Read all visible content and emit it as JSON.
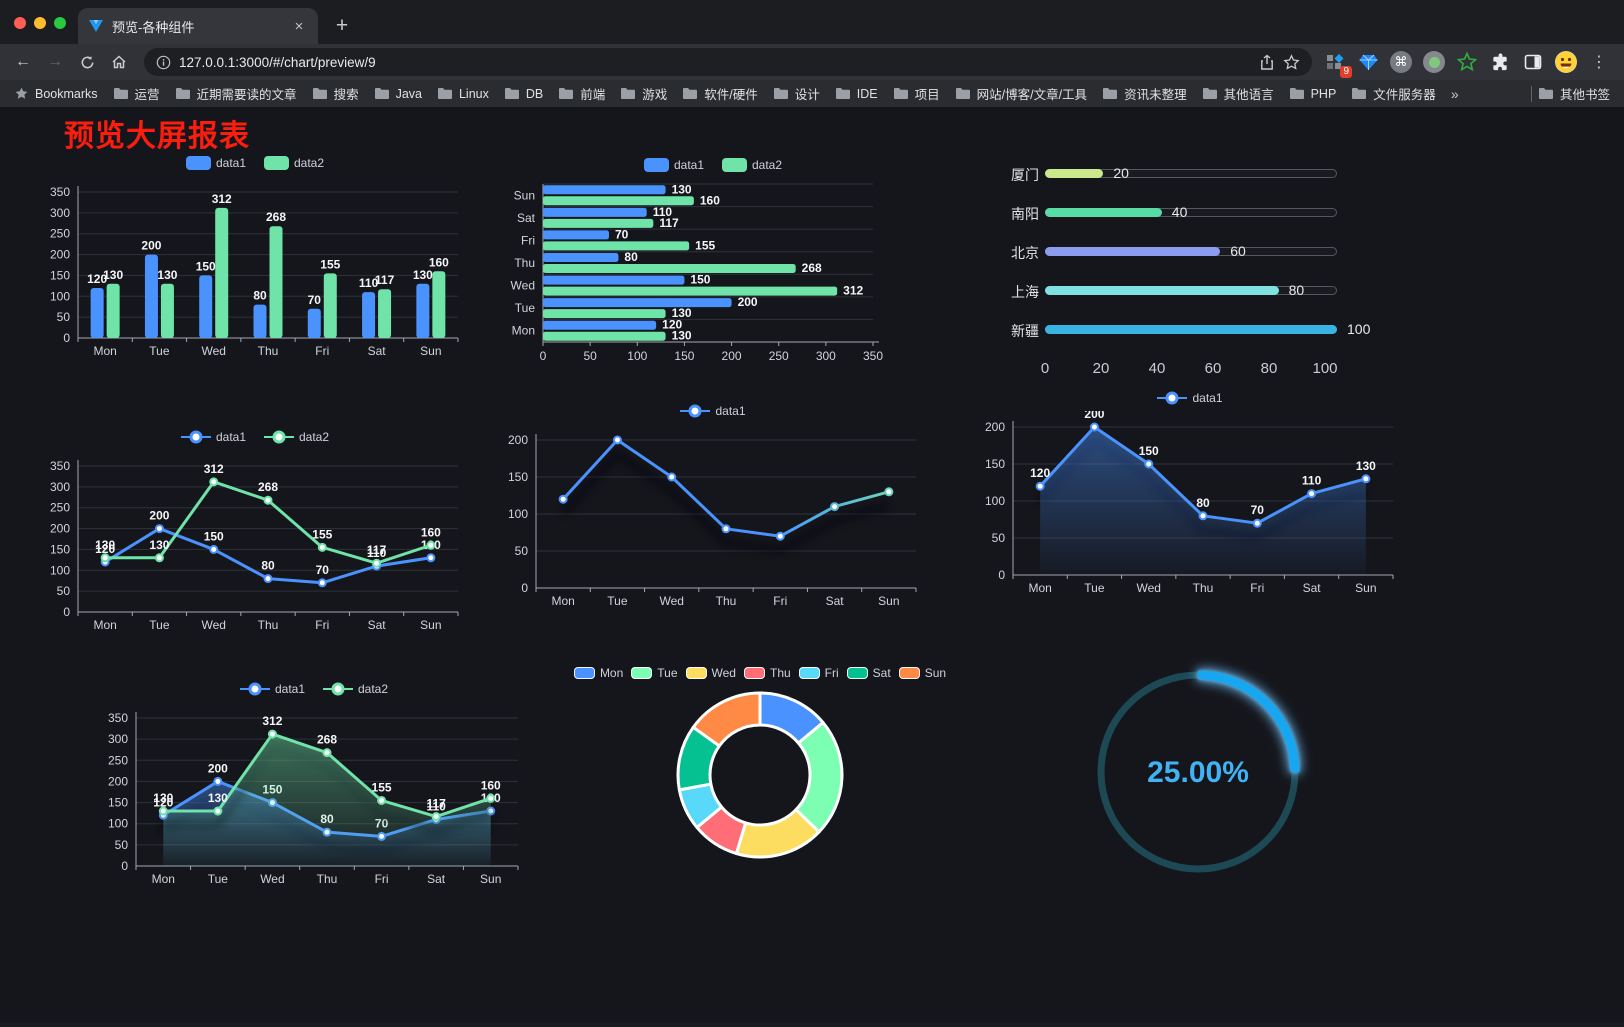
{
  "browser": {
    "tab_title": "预览-各种组件",
    "tab_close": "×",
    "new_tab": "+",
    "url": "127.0.0.1:3000/#/chart/preview/9",
    "ext_badge": "9",
    "menu_icon": "⋮",
    "command_icon": "⌘",
    "bookmarks_label": "Bookmarks",
    "bookmarks": [
      "运营",
      "近期需要读的文章",
      "搜索",
      "Java",
      "Linux",
      "DB",
      "前端",
      "游戏",
      "软件/硬件",
      "设计",
      "IDE",
      "项目",
      "网站/博客/文章/工具",
      "资讯未整理",
      "其他语言",
      "PHP",
      "文件服务器"
    ],
    "overflow": "»",
    "other_bookmarks": "其他书签"
  },
  "page": {
    "title": "预览大屏报表",
    "title_color": "#fb1d0e",
    "background": "#15161c"
  },
  "chart_data": [
    {
      "id": "grouped-bar",
      "type": "bar",
      "categories": [
        "Mon",
        "Tue",
        "Wed",
        "Thu",
        "Fri",
        "Sat",
        "Sun"
      ],
      "series": [
        {
          "name": "data1",
          "color": "#4a93ff",
          "values": [
            120,
            200,
            150,
            80,
            70,
            110,
            130
          ]
        },
        {
          "name": "data2",
          "color": "#6fe3a8",
          "values": [
            130,
            130,
            312,
            268,
            155,
            117,
            160
          ]
        }
      ],
      "ylim": [
        0,
        350
      ],
      "ytick_step": 50,
      "legend": true,
      "value_labels": true
    },
    {
      "id": "grouped-hbar",
      "type": "hbar",
      "categories": [
        "Mon",
        "Tue",
        "Wed",
        "Thu",
        "Fri",
        "Sat",
        "Sun"
      ],
      "series": [
        {
          "name": "data1",
          "color": "#4a93ff",
          "values": [
            120,
            200,
            150,
            80,
            70,
            110,
            130
          ]
        },
        {
          "name": "data2",
          "color": "#6fe3a8",
          "values": [
            130,
            130,
            312,
            268,
            155,
            117,
            160
          ]
        }
      ],
      "xlim": [
        0,
        350
      ],
      "xtick_step": 50,
      "legend": true,
      "value_labels": true
    },
    {
      "id": "city-progress",
      "type": "progress",
      "max": 100,
      "xticks": [
        0,
        20,
        40,
        60,
        80,
        100
      ],
      "items": [
        {
          "label": "厦门",
          "value": 20,
          "color": "#cbe98c"
        },
        {
          "label": "南阳",
          "value": 40,
          "color": "#57dca6"
        },
        {
          "label": "北京",
          "value": 60,
          "color": "#8e9cf0"
        },
        {
          "label": "上海",
          "value": 80,
          "color": "#80e2e0"
        },
        {
          "label": "新疆",
          "value": 100,
          "color": "#38b3e2"
        }
      ]
    },
    {
      "id": "two-line",
      "type": "line",
      "categories": [
        "Mon",
        "Tue",
        "Wed",
        "Thu",
        "Fri",
        "Sat",
        "Sun"
      ],
      "series": [
        {
          "name": "data1",
          "color": "#4a93ff",
          "values": [
            120,
            200,
            150,
            80,
            70,
            110,
            130
          ]
        },
        {
          "name": "data2",
          "color": "#6fe3a8",
          "values": [
            130,
            130,
            312,
            268,
            155,
            117,
            160
          ]
        }
      ],
      "ylim": [
        0,
        350
      ],
      "ytick_step": 50,
      "legend": true,
      "value_labels": true,
      "shadow": false
    },
    {
      "id": "gradient-line",
      "type": "line",
      "categories": [
        "Mon",
        "Tue",
        "Wed",
        "Thu",
        "Fri",
        "Sat",
        "Sun"
      ],
      "series": [
        {
          "name": "data1",
          "color": "#4a93ff",
          "color2": "#6fe3a8",
          "values": [
            120,
            200,
            150,
            80,
            70,
            110,
            130
          ]
        }
      ],
      "ylim": [
        0,
        200
      ],
      "ytick_step": 50,
      "legend": true,
      "value_labels": false,
      "shadow": true
    },
    {
      "id": "area-line",
      "type": "line",
      "categories": [
        "Mon",
        "Tue",
        "Wed",
        "Thu",
        "Fri",
        "Sat",
        "Sun"
      ],
      "series": [
        {
          "name": "data1",
          "color": "#4a93ff",
          "area": true,
          "values": [
            120,
            200,
            150,
            80,
            70,
            110,
            130
          ]
        }
      ],
      "ylim": [
        0,
        200
      ],
      "ytick_step": 50,
      "legend": true,
      "value_labels": true,
      "shadow": true
    },
    {
      "id": "two-area-line",
      "type": "line",
      "categories": [
        "Mon",
        "Tue",
        "Wed",
        "Thu",
        "Fri",
        "Sat",
        "Sun"
      ],
      "series": [
        {
          "name": "data1",
          "color": "#4a93ff",
          "area": true,
          "values": [
            120,
            200,
            150,
            80,
            70,
            110,
            130
          ]
        },
        {
          "name": "data2",
          "color": "#6fe3a8",
          "area": true,
          "values": [
            130,
            130,
            312,
            268,
            155,
            117,
            160
          ]
        }
      ],
      "ylim": [
        0,
        350
      ],
      "ytick_step": 50,
      "legend": true,
      "value_labels": true,
      "shadow": true
    },
    {
      "id": "week-donut",
      "type": "pie",
      "legend": true,
      "items": [
        {
          "label": "Mon",
          "value": 120,
          "color": "#4992ff"
        },
        {
          "label": "Tue",
          "value": 200,
          "color": "#7cffb2"
        },
        {
          "label": "Wed",
          "value": 150,
          "color": "#fddd60"
        },
        {
          "label": "Thu",
          "value": 80,
          "color": "#ff6e76"
        },
        {
          "label": "Fri",
          "value": 70,
          "color": "#58d9f9"
        },
        {
          "label": "Sat",
          "value": 110,
          "color": "#05c091"
        },
        {
          "label": "Sun",
          "value": 130,
          "color": "#ff8a45"
        }
      ]
    },
    {
      "id": "percent-gauge",
      "type": "gauge",
      "value": 25,
      "label": "25.00%",
      "color": "#17a6f0",
      "track_color": "#1d4955",
      "text_color": "#41b2f3"
    }
  ]
}
